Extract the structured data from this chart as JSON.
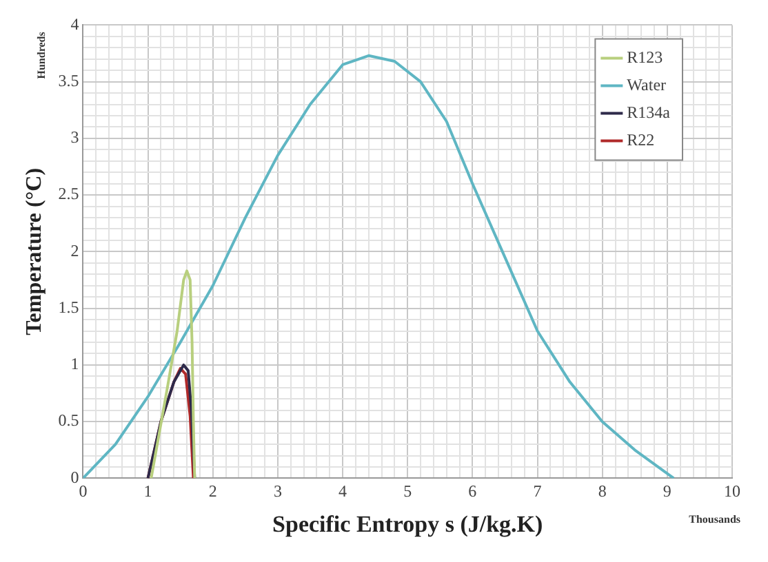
{
  "chart_data": {
    "type": "line",
    "xlabel": "Specific Entropy s (J/kg.K)",
    "ylabel": "Temperature (°C)",
    "annotations": [
      "Hundreds",
      "Thousands"
    ],
    "xlim": [
      0,
      10
    ],
    "xticks": [
      0,
      {
        "value": 0.2,
        "label": null
      },
      {
        "value": 0.4,
        "label": null
      },
      {
        "value": 0.6,
        "label": null
      },
      {
        "value": 0.8,
        "label": null
      },
      1,
      {
        "value": 1.2,
        "label": null
      },
      {
        "value": 1.4,
        "label": null
      },
      {
        "value": 1.6,
        "label": null
      },
      {
        "value": 1.8,
        "label": null
      },
      2,
      {
        "value": 2.2,
        "label": null
      },
      {
        "value": 2.4,
        "label": null
      },
      {
        "value": 2.6,
        "label": null
      },
      {
        "value": 2.8,
        "label": null
      },
      3,
      {
        "value": 3.2,
        "label": null
      },
      {
        "value": 3.4,
        "label": null
      },
      {
        "value": 3.6,
        "label": null
      },
      {
        "value": 3.8,
        "label": null
      },
      4,
      {
        "value": 4.2,
        "label": null
      },
      {
        "value": 4.4,
        "label": null
      },
      {
        "value": 4.6,
        "label": null
      },
      {
        "value": 4.8,
        "label": null
      },
      5,
      {
        "value": 5.2,
        "label": null
      },
      {
        "value": 5.4,
        "label": null
      },
      {
        "value": 5.6,
        "label": null
      },
      {
        "value": 5.8,
        "label": null
      },
      6,
      {
        "value": 6.2,
        "label": null
      },
      {
        "value": 6.4,
        "label": null
      },
      {
        "value": 6.6,
        "label": null
      },
      {
        "value": 6.8,
        "label": null
      },
      7,
      {
        "value": 7.2,
        "label": null
      },
      {
        "value": 7.4,
        "label": null
      },
      {
        "value": 7.6,
        "label": null
      },
      {
        "value": 7.8,
        "label": null
      },
      8,
      {
        "value": 8.2,
        "label": null
      },
      {
        "value": 8.4,
        "label": null
      },
      {
        "value": 8.6,
        "label": null
      },
      {
        "value": 8.8,
        "label": null
      },
      9,
      {
        "value": 9.2,
        "label": null
      },
      {
        "value": 9.4,
        "label": null
      },
      {
        "value": 9.6,
        "label": null
      },
      {
        "value": 9.8,
        "label": null
      },
      10
    ],
    "ylim": [
      0,
      4
    ],
    "yticks": [
      0,
      {
        "value": 0.1,
        "label": null
      },
      {
        "value": 0.2,
        "label": null
      },
      {
        "value": 0.3,
        "label": null
      },
      {
        "value": 0.4,
        "label": null
      },
      0.5,
      {
        "value": 0.6,
        "label": null
      },
      {
        "value": 0.7,
        "label": null
      },
      {
        "value": 0.8,
        "label": null
      },
      {
        "value": 0.9,
        "label": null
      },
      1,
      {
        "value": 1.1,
        "label": null
      },
      {
        "value": 1.2,
        "label": null
      },
      {
        "value": 1.3,
        "label": null
      },
      {
        "value": 1.4,
        "label": null
      },
      1.5,
      {
        "value": 1.6,
        "label": null
      },
      {
        "value": 1.7,
        "label": null
      },
      {
        "value": 1.8,
        "label": null
      },
      {
        "value": 1.9,
        "label": null
      },
      2,
      {
        "value": 2.1,
        "label": null
      },
      {
        "value": 2.2,
        "label": null
      },
      {
        "value": 2.3,
        "label": null
      },
      {
        "value": 2.4,
        "label": null
      },
      2.5,
      {
        "value": 2.6,
        "label": null
      },
      {
        "value": 2.7,
        "label": null
      },
      {
        "value": 2.8,
        "label": null
      },
      {
        "value": 2.9,
        "label": null
      },
      3,
      {
        "value": 3.1,
        "label": null
      },
      {
        "value": 3.2,
        "label": null
      },
      {
        "value": 3.3,
        "label": null
      },
      {
        "value": 3.4,
        "label": null
      },
      3.5,
      {
        "value": 3.6,
        "label": null
      },
      {
        "value": 3.7,
        "label": null
      },
      {
        "value": 3.8,
        "label": null
      },
      {
        "value": 3.9,
        "label": null
      },
      4
    ],
    "grid": true,
    "legend": "top right",
    "marker": "none",
    "series": [
      {
        "name": "R123",
        "color": "#b8cf7e",
        "x": [
          1.05,
          1.3,
          1.45,
          1.55,
          1.6,
          1.65,
          1.68,
          1.7,
          1.72
        ],
        "values": [
          0,
          0.8,
          1.3,
          1.75,
          1.83,
          1.75,
          1.2,
          0.5,
          0
        ]
      },
      {
        "name": "Water",
        "color": "#5fb6c3",
        "x": [
          0,
          0.5,
          1,
          1.5,
          2,
          2.5,
          3,
          3.5,
          4,
          4.4,
          4.8,
          5.2,
          5.6,
          6,
          6.5,
          7,
          7.5,
          8,
          8.5,
          9.1
        ],
        "values": [
          0,
          0.3,
          0.72,
          1.2,
          1.7,
          2.3,
          2.85,
          3.3,
          3.65,
          3.73,
          3.68,
          3.5,
          3.15,
          2.6,
          1.95,
          1.3,
          0.85,
          0.5,
          0.25,
          0
        ]
      },
      {
        "name": "R134a",
        "color": "#2e2a4a",
        "x": [
          1,
          1.2,
          1.4,
          1.55,
          1.62,
          1.67,
          1.72
        ],
        "values": [
          0,
          0.5,
          0.85,
          1.0,
          0.95,
          0.6,
          0
        ]
      },
      {
        "name": "R22",
        "color": "#b02a2a",
        "x": [
          1,
          1.2,
          1.4,
          1.5,
          1.58,
          1.65,
          1.7
        ],
        "values": [
          0,
          0.5,
          0.85,
          0.97,
          0.92,
          0.55,
          0
        ]
      }
    ]
  }
}
